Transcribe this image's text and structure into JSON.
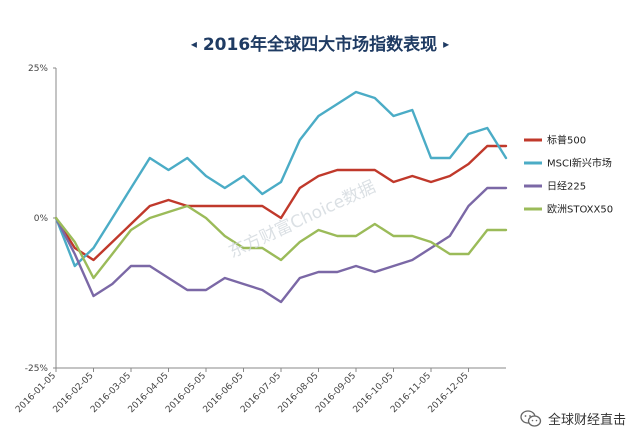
{
  "title": "2016年全球四大市场指数表现",
  "title_arrows": {
    "left": "◂",
    "right": "▸"
  },
  "watermark": "东方财富Choice数据",
  "footer_text": "全球财经直击",
  "footer_icon": "wechat-icon",
  "chart_data": {
    "type": "line",
    "title": "2016年全球四大市场指数表现",
    "xlabel": "",
    "ylabel": "",
    "ylim": [
      -25,
      25
    ],
    "y_ticks": [
      "25%",
      "0%",
      "-25%"
    ],
    "y_tick_values": [
      25,
      0,
      -25
    ],
    "x_ticks": [
      "2016-01-05",
      "2016-02-05",
      "2016-03-05",
      "2016-04-05",
      "2016-05-05",
      "2016-06-05",
      "2016-07-05",
      "2016-08-05",
      "2016-09-05",
      "2016-10-05",
      "2016-11-05",
      "2016-12-05"
    ],
    "grid": false,
    "legend_position": "right",
    "x": [
      "2016-01-05",
      "2016-01-20",
      "2016-02-05",
      "2016-02-20",
      "2016-03-05",
      "2016-03-20",
      "2016-04-05",
      "2016-04-20",
      "2016-05-05",
      "2016-05-20",
      "2016-06-05",
      "2016-06-20",
      "2016-07-05",
      "2016-07-20",
      "2016-08-05",
      "2016-08-20",
      "2016-09-05",
      "2016-09-20",
      "2016-10-05",
      "2016-10-20",
      "2016-11-05",
      "2016-11-20",
      "2016-12-05",
      "2016-12-20",
      "2016-12-30"
    ],
    "series": [
      {
        "name": "标普500",
        "color": "#c0392b",
        "values": [
          0,
          -5,
          -7,
          -4,
          -1,
          2,
          3,
          2,
          2,
          2,
          2,
          2,
          0,
          5,
          7,
          8,
          8,
          8,
          6,
          7,
          6,
          7,
          9,
          12,
          12
        ]
      },
      {
        "name": "MSCI新兴市场",
        "color": "#4bacc6",
        "values": [
          0,
          -8,
          -5,
          0,
          5,
          10,
          8,
          10,
          7,
          5,
          7,
          4,
          6,
          13,
          17,
          19,
          21,
          20,
          17,
          18,
          10,
          10,
          14,
          15,
          10
        ]
      },
      {
        "name": "日经225",
        "color": "#7b68a6",
        "values": [
          0,
          -6,
          -13,
          -11,
          -8,
          -8,
          -10,
          -12,
          -12,
          -10,
          -11,
          -12,
          -14,
          -10,
          -9,
          -9,
          -8,
          -9,
          -8,
          -7,
          -5,
          -3,
          2,
          5,
          5
        ]
      },
      {
        "name": "欧洲STOXX50",
        "color": "#9bbb59",
        "values": [
          0,
          -4,
          -10,
          -6,
          -2,
          0,
          1,
          2,
          0,
          -3,
          -5,
          -5,
          -7,
          -4,
          -2,
          -3,
          -3,
          -1,
          -3,
          -3,
          -4,
          -6,
          -6,
          -2,
          -2
        ]
      }
    ]
  }
}
